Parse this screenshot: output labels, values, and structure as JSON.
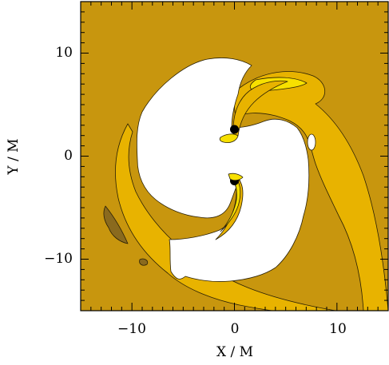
{
  "chart_data": {
    "type": "heatmap",
    "title": "",
    "xlabel": "X / M",
    "ylabel": "Y / M",
    "xlim": [
      -15,
      15
    ],
    "ylim": [
      -15,
      15
    ],
    "xticks": [
      -10,
      0,
      10
    ],
    "yticks": [
      -10,
      0,
      10
    ],
    "xtick_labels": [
      "−10",
      "0",
      "10"
    ],
    "ytick_labels": [
      "−10",
      "0",
      "10"
    ],
    "grid": false,
    "colorbar": false,
    "contour_level_colors": [
      "#8a6a1e",
      "#c8960e",
      "#ffffff",
      "#e8b300",
      "#f7e000"
    ],
    "black_holes": [
      {
        "x": 0.0,
        "y": 2.6
      },
      {
        "x": 0.0,
        "y": -2.4
      }
    ]
  }
}
